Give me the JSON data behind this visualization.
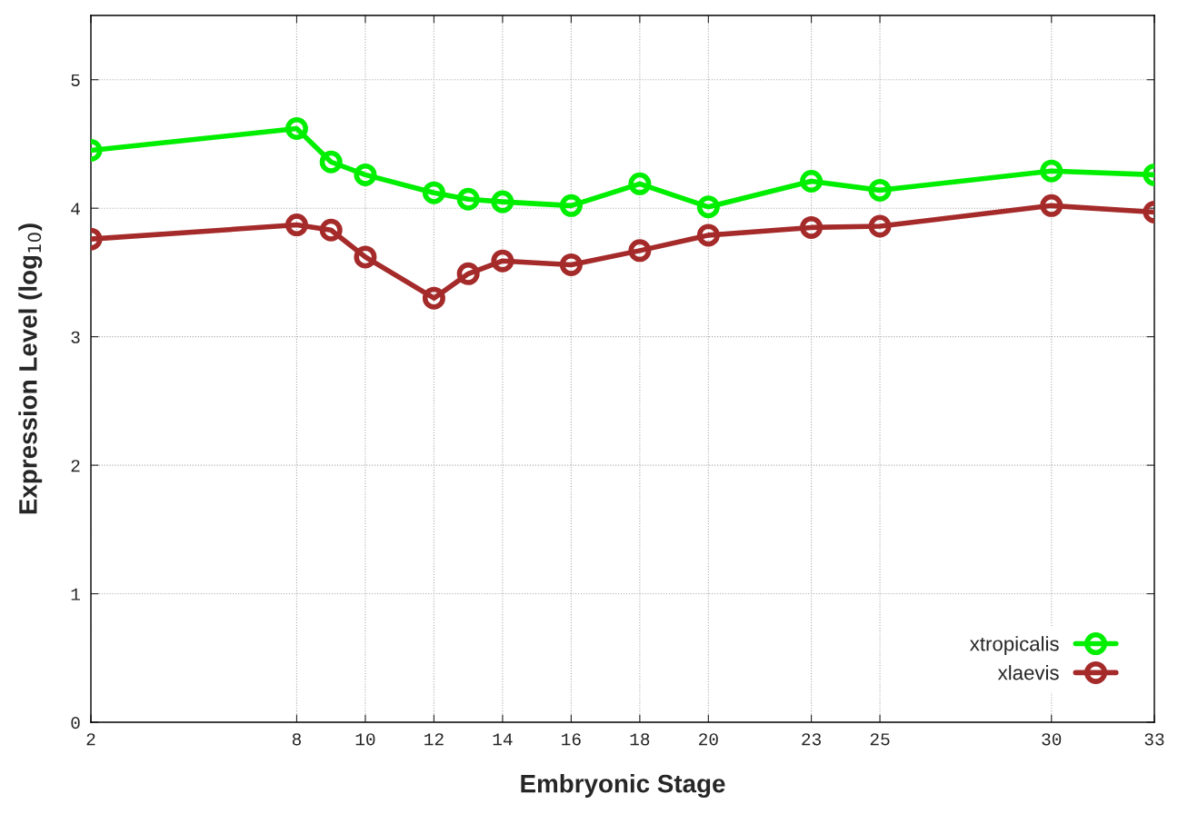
{
  "chart_data": {
    "type": "line",
    "xlabel": "Embryonic Stage",
    "ylabel": "Expression Level (log$_{10}$)",
    "x": [
      2,
      8,
      9,
      10,
      12,
      13,
      14,
      16,
      18,
      20,
      23,
      25,
      30,
      33
    ],
    "series": [
      {
        "name": "xtropicalis",
        "color": "#00ee00",
        "values": [
          4.45,
          4.62,
          4.36,
          4.26,
          4.12,
          4.07,
          4.05,
          4.02,
          4.19,
          4.01,
          4.21,
          4.14,
          4.29,
          4.26
        ]
      },
      {
        "name": "xlaevis",
        "color": "#a52a2a",
        "values": [
          3.76,
          3.87,
          3.83,
          3.62,
          3.3,
          3.49,
          3.59,
          3.56,
          3.67,
          3.79,
          3.85,
          3.86,
          4.02,
          3.97
        ]
      }
    ],
    "xlim": [
      2,
      33
    ],
    "xticks": [
      2,
      8,
      10,
      12,
      14,
      16,
      18,
      20,
      23,
      25,
      30,
      33
    ],
    "ylim": [
      0,
      5.5
    ],
    "yticks": [
      0,
      1,
      2,
      3,
      4,
      5
    ],
    "grid": true,
    "legend": "bottom right",
    "marker": "circle",
    "line_style": "solid"
  }
}
